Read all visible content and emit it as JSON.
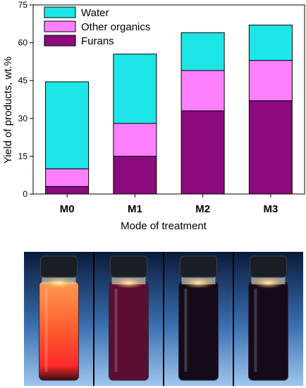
{
  "chart_data": {
    "type": "bar",
    "stacked": true,
    "categories": [
      "M0",
      "M1",
      "M2",
      "M3"
    ],
    "series": [
      {
        "name": "Furans",
        "color": "#8b0a7d",
        "values": [
          3,
          15,
          33,
          37
        ]
      },
      {
        "name": "Other organics",
        "color": "#ff80ff",
        "values": [
          7,
          13,
          16,
          16
        ]
      },
      {
        "name": "Water",
        "color": "#1ee6e6",
        "values": [
          34.5,
          27.5,
          15,
          14
        ]
      }
    ],
    "legend_order": [
      "Water",
      "Other organics",
      "Furans"
    ],
    "legend_position": "top-left",
    "title": "",
    "xlabel": "Mode of treatment",
    "ylabel": "Yield of products, wt.%",
    "ylim": [
      0,
      75
    ],
    "yticks": [
      0,
      15,
      30,
      45,
      60,
      75
    ],
    "grid": false
  },
  "photo": {
    "vials": [
      {
        "liquid": "#ff5a2e",
        "glow": "#ffe6a0"
      },
      {
        "liquid": "#5a0e30",
        "glow": "#ffb060"
      },
      {
        "liquid": "#140a1a",
        "glow": "#ffb060"
      },
      {
        "liquid": "#140a1a",
        "glow": "#ffb060"
      }
    ]
  }
}
